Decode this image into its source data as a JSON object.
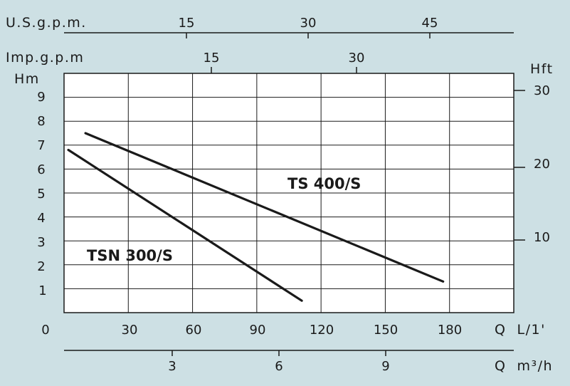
{
  "chart_data": {
    "type": "line",
    "background": "#cde0e4",
    "plot_background": "#ffffff",
    "line_color": "#1a1a1a",
    "grid": true,
    "x_axis": {
      "label": "Q  L/1'",
      "origin_label": "0",
      "ticks": [
        "30",
        "60",
        "90",
        "120",
        "150",
        "180"
      ],
      "range": [
        0,
        210
      ]
    },
    "y_axis": {
      "label": "Hm",
      "ticks": [
        "1",
        "2",
        "3",
        "4",
        "5",
        "6",
        "7",
        "8",
        "9"
      ],
      "range": [
        0,
        10
      ]
    },
    "y_axis_right": {
      "label": "Hft",
      "ticks": [
        "10",
        "20",
        "30"
      ]
    },
    "x_axis_top_1": {
      "label": "U.S.g.p.m.",
      "ticks": [
        "15",
        "30",
        "45"
      ]
    },
    "x_axis_top_2": {
      "label": "Imp.g.p.m",
      "ticks": [
        "15",
        "30"
      ]
    },
    "x_axis_bottom_2": {
      "label": "Q  m³/h",
      "ticks": [
        "3",
        "6",
        "9"
      ]
    },
    "series": [
      {
        "name": "TS 400/S",
        "points": [
          [
            10,
            7.5
          ],
          [
            177,
            1.3
          ]
        ]
      },
      {
        "name": "TSN 300/S",
        "points": [
          [
            2,
            6.8
          ],
          [
            111,
            0.5
          ]
        ]
      }
    ]
  }
}
